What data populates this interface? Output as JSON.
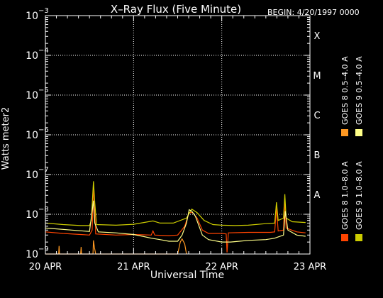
{
  "chart_data": {
    "type": "line",
    "title": "X–Ray Flux (Five Minute)",
    "begin_label": "BEGIN: 4/20/1997 0000",
    "xlabel": "Universal Time",
    "ylabel": "Watts meter2",
    "x_tick_labels": [
      "20 APR",
      "21 APR",
      "22 APR",
      "23 APR"
    ],
    "x_range_days": [
      0,
      3
    ],
    "y_scale": "log",
    "ylim": [
      1e-09,
      0.001
    ],
    "y_ticks": [
      {
        "base": "10",
        "exp": "−3",
        "value": 0.001
      },
      {
        "base": "10",
        "exp": "−4",
        "value": 0.0001
      },
      {
        "base": "10",
        "exp": "−5",
        "value": 1e-05
      },
      {
        "base": "10",
        "exp": "−6",
        "value": 1e-06
      },
      {
        "base": "10",
        "exp": "−7",
        "value": 1e-07
      },
      {
        "base": "10",
        "exp": "−8",
        "value": 1e-08
      },
      {
        "base": "10",
        "exp": "−9",
        "value": 1e-09
      }
    ],
    "flare_classes": [
      {
        "label": "X",
        "value": 0.0001
      },
      {
        "label": "M",
        "value": 1e-05
      },
      {
        "label": "C",
        "value": 1e-06
      },
      {
        "label": "B",
        "value": 1e-07
      },
      {
        "label": "A",
        "value": 1e-08
      }
    ],
    "grid": "dotted lines at each decade and each day",
    "series": [
      {
        "name": "GOES 8 1.0–8.0 A",
        "color": "#ff4400",
        "points": [
          [
            0,
            3.6e-09
          ],
          [
            0.2,
            3.3e-09
          ],
          [
            0.4,
            3.1e-09
          ],
          [
            0.5,
            3e-09
          ],
          [
            0.53,
            4e-09
          ],
          [
            0.545,
            4.5e-08
          ],
          [
            0.555,
            2.5e-08
          ],
          [
            0.57,
            3.2e-09
          ],
          [
            0.8,
            3e-09
          ],
          [
            1.0,
            3.1e-09
          ],
          [
            1.2,
            3e-09
          ],
          [
            1.22,
            3.8e-09
          ],
          [
            1.24,
            3e-09
          ],
          [
            1.4,
            2.9e-09
          ],
          [
            1.5,
            3e-09
          ],
          [
            1.58,
            5e-09
          ],
          [
            1.63,
            1.1e-08
          ],
          [
            1.67,
            1.1e-08
          ],
          [
            1.72,
            8e-09
          ],
          [
            1.78,
            4e-09
          ],
          [
            1.85,
            3.3e-09
          ],
          [
            2.0,
            3.3e-09
          ],
          [
            2.05,
            3.2e-09
          ],
          [
            2.06,
            1.1e-09
          ],
          [
            2.075,
            3.4e-09
          ],
          [
            2.3,
            3.5e-09
          ],
          [
            2.55,
            3.5e-09
          ],
          [
            2.6,
            3.6e-09
          ],
          [
            2.62,
            1.5e-08
          ],
          [
            2.64,
            3.8e-09
          ],
          [
            2.7,
            4e-09
          ],
          [
            2.715,
            2.3e-08
          ],
          [
            2.73,
            4.5e-09
          ],
          [
            2.85,
            3.6e-09
          ],
          [
            2.95,
            3.4e-09
          ]
        ]
      },
      {
        "name": "GOES 8 0.5–4.0 A",
        "color": "#ff9922",
        "points": [
          [
            0,
            1e-09
          ],
          [
            0.15,
            1e-09
          ],
          [
            0.155,
            1.6e-09
          ],
          [
            0.16,
            1e-09
          ],
          [
            0.4,
            1e-09
          ],
          [
            0.405,
            1.5e-09
          ],
          [
            0.41,
            1e-09
          ],
          [
            0.54,
            1e-09
          ],
          [
            0.545,
            2.2e-09
          ],
          [
            0.555,
            1.5e-09
          ],
          [
            0.57,
            1e-09
          ],
          [
            1.5,
            1e-09
          ],
          [
            1.53,
            2e-09
          ],
          [
            1.55,
            2.4e-09
          ],
          [
            1.58,
            1.8e-09
          ],
          [
            1.6,
            1e-09
          ]
        ]
      },
      {
        "name": "GOES 9 1.0–8.0 A",
        "color": "#cccc00",
        "points": [
          [
            0,
            6e-09
          ],
          [
            0.2,
            5.5e-09
          ],
          [
            0.4,
            5.2e-09
          ],
          [
            0.5,
            5.2e-09
          ],
          [
            0.52,
            7e-09
          ],
          [
            0.545,
            6.8e-08
          ],
          [
            0.56,
            2e-08
          ],
          [
            0.58,
            5.5e-09
          ],
          [
            0.8,
            5.3e-09
          ],
          [
            1.0,
            5.6e-09
          ],
          [
            1.22,
            6.8e-09
          ],
          [
            1.3,
            6e-09
          ],
          [
            1.45,
            6e-09
          ],
          [
            1.6,
            8e-09
          ],
          [
            1.66,
            1.35e-08
          ],
          [
            1.72,
            1.1e-08
          ],
          [
            1.8,
            7e-09
          ],
          [
            1.9,
            5.5e-09
          ],
          [
            2.0,
            5.3e-09
          ],
          [
            2.15,
            5.2e-09
          ],
          [
            2.3,
            5.3e-09
          ],
          [
            2.5,
            5.8e-09
          ],
          [
            2.6,
            6e-09
          ],
          [
            2.62,
            2e-08
          ],
          [
            2.64,
            7e-09
          ],
          [
            2.7,
            8e-09
          ],
          [
            2.715,
            3.2e-08
          ],
          [
            2.73,
            8e-09
          ],
          [
            2.8,
            6.5e-09
          ],
          [
            2.95,
            6.2e-09
          ]
        ]
      },
      {
        "name": "GOES 9 0.5–4.0 A",
        "color": "#ffff88",
        "points": [
          [
            0,
            4.5e-09
          ],
          [
            0.3,
            4e-09
          ],
          [
            0.5,
            3.7e-09
          ],
          [
            0.545,
            2.2e-08
          ],
          [
            0.56,
            6e-09
          ],
          [
            0.6,
            3.6e-09
          ],
          [
            0.8,
            3.4e-09
          ],
          [
            1.0,
            3.1e-09
          ],
          [
            1.1,
            2.8e-09
          ],
          [
            1.2,
            2.5e-09
          ],
          [
            1.3,
            2.3e-09
          ],
          [
            1.4,
            2.1e-09
          ],
          [
            1.5,
            2.1e-09
          ],
          [
            1.55,
            3e-09
          ],
          [
            1.6,
            6e-09
          ],
          [
            1.63,
            1.3e-08
          ],
          [
            1.66,
            1.2e-08
          ],
          [
            1.7,
            9e-09
          ],
          [
            1.78,
            3e-09
          ],
          [
            1.85,
            2.3e-09
          ],
          [
            2.0,
            2e-09
          ],
          [
            2.1,
            2e-09
          ],
          [
            2.2,
            2.1e-09
          ],
          [
            2.3,
            2.2e-09
          ],
          [
            2.5,
            2.3e-09
          ],
          [
            2.6,
            2.5e-09
          ],
          [
            2.7,
            3e-09
          ],
          [
            2.72,
            1.2e-08
          ],
          [
            2.75,
            4e-09
          ],
          [
            2.85,
            3e-09
          ],
          [
            2.95,
            2.8e-09
          ]
        ]
      }
    ]
  }
}
